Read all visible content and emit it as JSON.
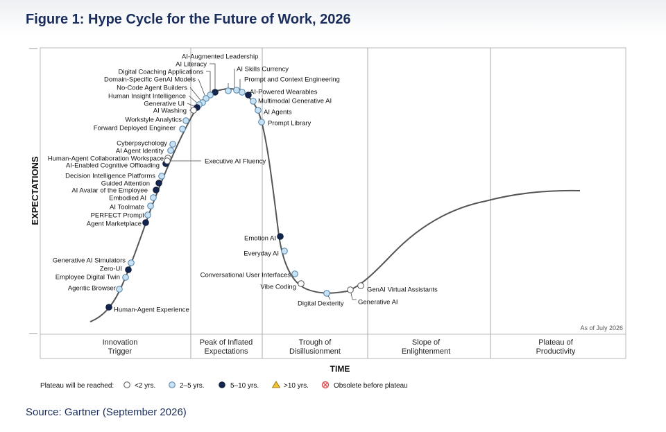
{
  "title": "Figure 1: Hype Cycle for the Future of Work, 2026",
  "source": "Source: Gartner (September 2026)",
  "chart_data": {
    "type": "hype-cycle",
    "ylabel": "EXPECTATIONS",
    "xlabel": "TIME",
    "as_of": "As of July 2026",
    "phases": [
      [
        "Innovation",
        "Trigger"
      ],
      [
        "Peak of Inflated",
        "Expectations"
      ],
      [
        "Trough of",
        "Disillusionment"
      ],
      [
        "Slope of",
        "Enlightenment"
      ],
      [
        "Plateau of",
        "Productivity"
      ]
    ],
    "legend": {
      "label": "Plateau will be reached:",
      "items": [
        {
          "key": "lt2",
          "label": "<2 yrs."
        },
        {
          "key": "2to5",
          "label": "2–5 yrs."
        },
        {
          "key": "5to10",
          "label": "5–10 yrs."
        },
        {
          "key": "gt10",
          "label": ">10 yrs."
        },
        {
          "key": "obsolete",
          "label": "Obsolete before plateau"
        }
      ]
    },
    "colors": {
      "lt2": "#ffffff",
      "2to5": "#c9e2f3",
      "5to10": "#14254f",
      "gt10": "#f2c12e",
      "obsolete": "#e04a4a",
      "curve": "#555555"
    },
    "innovations": [
      {
        "name": "AI-Augmented Leadership",
        "plateau": "2to5"
      },
      {
        "name": "AI Literacy",
        "plateau": "5to10"
      },
      {
        "name": "Digital Coaching Applications",
        "plateau": "2to5"
      },
      {
        "name": "Domain-Specific GenAI Models",
        "plateau": "2to5"
      },
      {
        "name": "No-Code Agent Builders",
        "plateau": "2to5"
      },
      {
        "name": "Human Insight Intelligence",
        "plateau": "2to5"
      },
      {
        "name": "Generative UI",
        "plateau": "5to10"
      },
      {
        "name": "AI Washing",
        "plateau": "lt2"
      },
      {
        "name": "Workstyle Analytics",
        "plateau": "2to5"
      },
      {
        "name": "Forward Deployed Engineer",
        "plateau": "2to5"
      },
      {
        "name": "Cyberpsychology",
        "plateau": "2to5"
      },
      {
        "name": "AI Agent Identity",
        "plateau": "2to5"
      },
      {
        "name": "Human-Agent Collaboration Workspace",
        "plateau": "lt2"
      },
      {
        "name": "AI-Enabled Cognitive Offloading",
        "plateau": "5to10"
      },
      {
        "name": "Decision Intelligence Platforms",
        "plateau": "2to5"
      },
      {
        "name": "Guided Attention",
        "plateau": "5to10"
      },
      {
        "name": "AI Avatar of the Employee",
        "plateau": "5to10"
      },
      {
        "name": "Embodied AI",
        "plateau": "2to5"
      },
      {
        "name": "AI Toolmate",
        "plateau": "2to5"
      },
      {
        "name": "PERFECT Prompt",
        "plateau": "2to5"
      },
      {
        "name": "Agent Marketplace",
        "plateau": "5to10"
      },
      {
        "name": "Generative AI Simulators",
        "plateau": "2to5"
      },
      {
        "name": "Zero-UI",
        "plateau": "5to10"
      },
      {
        "name": "Employee Digital Twin",
        "plateau": "2to5"
      },
      {
        "name": "Agentic Browser",
        "plateau": "2to5"
      },
      {
        "name": "Human-Agent Experience",
        "plateau": "5to10"
      },
      {
        "name": "AI Skills Currency",
        "plateau": "2to5"
      },
      {
        "name": "Prompt and Context Engineering",
        "plateau": "2to5"
      },
      {
        "name": "AI-Powered Wearables",
        "plateau": "5to10"
      },
      {
        "name": "Multimodal Generative AI",
        "plateau": "2to5"
      },
      {
        "name": "AI Agents",
        "plateau": "2to5"
      },
      {
        "name": "Prompt Library",
        "plateau": "2to5"
      },
      {
        "name": "Executive AI Fluency",
        "plateau": "lt2"
      },
      {
        "name": "Emotion AI",
        "plateau": "5to10"
      },
      {
        "name": "Everyday AI",
        "plateau": "2to5"
      },
      {
        "name": "Conversational User Interfaces",
        "plateau": "2to5"
      },
      {
        "name": "Vibe Coding",
        "plateau": "lt2"
      },
      {
        "name": "Digital Dexterity",
        "plateau": "2to5"
      },
      {
        "name": "GenAI Virtual Assistants",
        "plateau": "lt2"
      },
      {
        "name": "Generative AI",
        "plateau": "lt2"
      }
    ]
  }
}
